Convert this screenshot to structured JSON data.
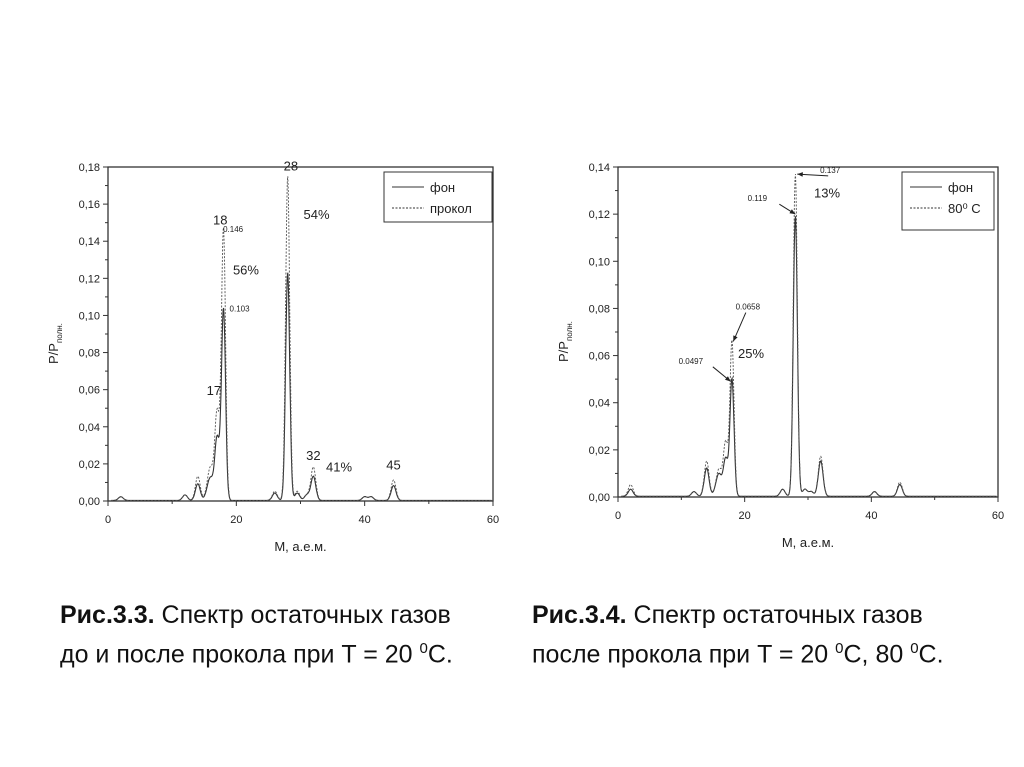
{
  "chart_data": [
    {
      "type": "line",
      "xlabel": "M, а.е.м.",
      "ylabel": "P/P",
      "ylabel_sub": "полн.",
      "xlim": [
        0,
        60
      ],
      "ylim": [
        0,
        0.18
      ],
      "xticks": [
        "0",
        "20",
        "40",
        "60"
      ],
      "yticks": [
        "0,00",
        "0,02",
        "0,04",
        "0,06",
        "0,08",
        "0,10",
        "0,12",
        "0,14",
        "0,16",
        "0,18"
      ],
      "legend_position": "top-right",
      "series": [
        {
          "name": "фон",
          "style": "solid",
          "peaks": [
            [
              2,
              0.002
            ],
            [
              12,
              0.003
            ],
            [
              14,
              0.009
            ],
            [
              15.5,
              0.004
            ],
            [
              16,
              0.01
            ],
            [
              17,
              0.034
            ],
            [
              18,
              0.103
            ],
            [
              26,
              0.004
            ],
            [
              28,
              0.123
            ],
            [
              29.5,
              0.004
            ],
            [
              31,
              0.003
            ],
            [
              32,
              0.013
            ],
            [
              40,
              0.002
            ],
            [
              41,
              0.002
            ],
            [
              44.5,
              0.008
            ]
          ]
        },
        {
          "name": "прокол",
          "style": "dashed",
          "peaks": [
            [
              2,
              0.002
            ],
            [
              12,
              0.003
            ],
            [
              14,
              0.013
            ],
            [
              15.5,
              0.005
            ],
            [
              16,
              0.015
            ],
            [
              17,
              0.048
            ],
            [
              18,
              0.146
            ],
            [
              26,
              0.005
            ],
            [
              28,
              0.175
            ],
            [
              29.5,
              0.005
            ],
            [
              31,
              0.003
            ],
            [
              32,
              0.018
            ],
            [
              40,
              0.002
            ],
            [
              41,
              0.002
            ],
            [
              44.5,
              0.011
            ]
          ]
        }
      ],
      "annotations": [
        {
          "text": "28",
          "x": 28.5,
          "y": 0.178,
          "size": "big"
        },
        {
          "text": "18",
          "x": 17.5,
          "y": 0.149,
          "size": "big"
        },
        {
          "text": "0.146",
          "x": 19.5,
          "y": 0.145,
          "size": "small"
        },
        {
          "text": "54%",
          "x": 32.5,
          "y": 0.152,
          "size": "big"
        },
        {
          "text": "56%",
          "x": 21.5,
          "y": 0.122,
          "size": "big"
        },
        {
          "text": "0.103",
          "x": 20.5,
          "y": 0.102,
          "size": "small"
        },
        {
          "text": "17",
          "x": 16.5,
          "y": 0.057,
          "size": "big"
        },
        {
          "text": "32",
          "x": 32,
          "y": 0.022,
          "size": "big"
        },
        {
          "text": "41%",
          "x": 36,
          "y": 0.016,
          "size": "big"
        },
        {
          "text": "45",
          "x": 44.5,
          "y": 0.017,
          "size": "big"
        }
      ]
    },
    {
      "type": "line",
      "xlabel": "M, а.е.м.",
      "ylabel": "P/P",
      "ylabel_sub": "полн.",
      "xlim": [
        0,
        60
      ],
      "ylim": [
        0,
        0.14
      ],
      "xticks": [
        "0",
        "20",
        "40",
        "60"
      ],
      "yticks": [
        "0,00",
        "0,02",
        "0,04",
        "0,06",
        "0,08",
        "0,10",
        "0,12",
        "0,14"
      ],
      "legend_position": "top-right",
      "series": [
        {
          "name": "фон",
          "style": "solid",
          "peaks": [
            [
              2,
              0.003
            ],
            [
              12,
              0.002
            ],
            [
              14,
              0.012
            ],
            [
              15.5,
              0.003
            ],
            [
              16,
              0.008
            ],
            [
              17,
              0.016
            ],
            [
              18,
              0.0497
            ],
            [
              26,
              0.003
            ],
            [
              28,
              0.119
            ],
            [
              29.5,
              0.003
            ],
            [
              30.5,
              0.002
            ],
            [
              32,
              0.015
            ],
            [
              40.5,
              0.002
            ],
            [
              44.5,
              0.005
            ]
          ]
        },
        {
          "name": "80⁰ C",
          "style": "dashed",
          "peaks": [
            [
              2,
              0.005
            ],
            [
              12,
              0.002
            ],
            [
              14,
              0.015
            ],
            [
              15.5,
              0.003
            ],
            [
              16,
              0.01
            ],
            [
              17,
              0.023
            ],
            [
              18,
              0.0658
            ],
            [
              26,
              0.003
            ],
            [
              28,
              0.137
            ],
            [
              29.5,
              0.003
            ],
            [
              30.5,
              0.002
            ],
            [
              32,
              0.017
            ],
            [
              40.5,
              0.002
            ],
            [
              44.5,
              0.006
            ]
          ]
        }
      ],
      "annotations": [
        {
          "text": "0.137",
          "x": 33.5,
          "y": 0.1375,
          "size": "small",
          "arrow_to": [
            28.3,
            0.137
          ]
        },
        {
          "text": "13%",
          "x": 33,
          "y": 0.127,
          "size": "big"
        },
        {
          "text": "0.119",
          "x": 22,
          "y": 0.1255,
          "size": "small",
          "arrow_to": [
            28,
            0.12
          ]
        },
        {
          "text": "0.0658",
          "x": 20.5,
          "y": 0.0795,
          "size": "small",
          "arrow_to": [
            18.2,
            0.066
          ]
        },
        {
          "text": "25%",
          "x": 21,
          "y": 0.059,
          "size": "big"
        },
        {
          "text": "0.0497",
          "x": 11.5,
          "y": 0.0565,
          "size": "small",
          "arrow_to": [
            17.8,
            0.049
          ]
        }
      ]
    }
  ],
  "captions": [
    {
      "bold": "Рис.3.3.",
      "line1": " Спектр остаточных газов",
      "line2": "до и после прокола при T = 20 ",
      "sup": "0",
      "end": "C."
    },
    {
      "bold": "Рис.3.4.",
      "line1": " Спектр остаточных газов",
      "line2": "после прокола при T = 20 ",
      "sup": "0",
      "end": "C, 80 ",
      "sup2": "0",
      "end2": "C."
    }
  ]
}
